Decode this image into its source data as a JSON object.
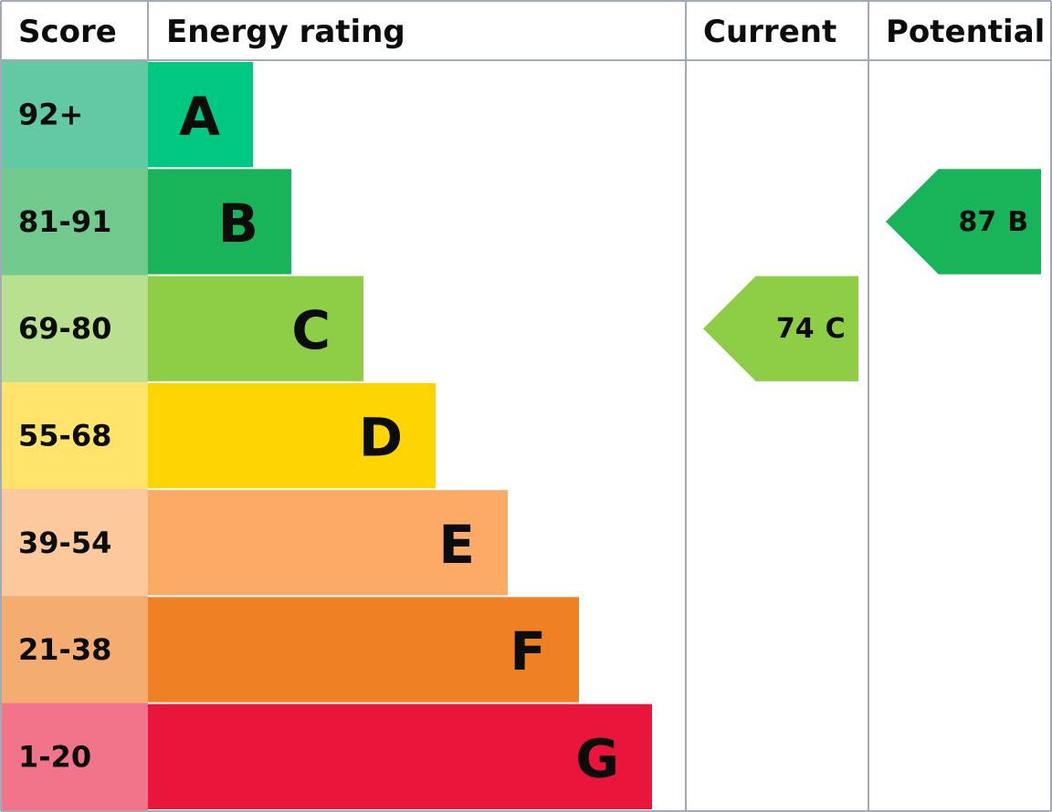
{
  "header": {
    "score": "Score",
    "energy_rating": "Energy rating",
    "current": "Current",
    "potential": "Potential"
  },
  "bands": [
    {
      "score": "92+",
      "rating": "A",
      "color": "#00c781",
      "score_color": "#63c9a5"
    },
    {
      "score": "81-91",
      "rating": "B",
      "color": "#19b459",
      "score_color": "#71c98e"
    },
    {
      "score": "69-80",
      "rating": "C",
      "color": "#8dce46",
      "score_color": "#b9e08f"
    },
    {
      "score": "55-68",
      "rating": "D",
      "color": "#ffd500",
      "score_color": "#ffe36b"
    },
    {
      "score": "39-54",
      "rating": "E",
      "color": "#fcaa65",
      "score_color": "#fdc89b"
    },
    {
      "score": "21-38",
      "rating": "F",
      "color": "#ef8023",
      "score_color": "#f4ac70"
    },
    {
      "score": "1-20",
      "rating": "G",
      "color": "#e9153b",
      "score_color": "#f2748b"
    }
  ],
  "current": {
    "score": 74,
    "rating": "C"
  },
  "potential": {
    "score": 87,
    "rating": "B"
  }
}
